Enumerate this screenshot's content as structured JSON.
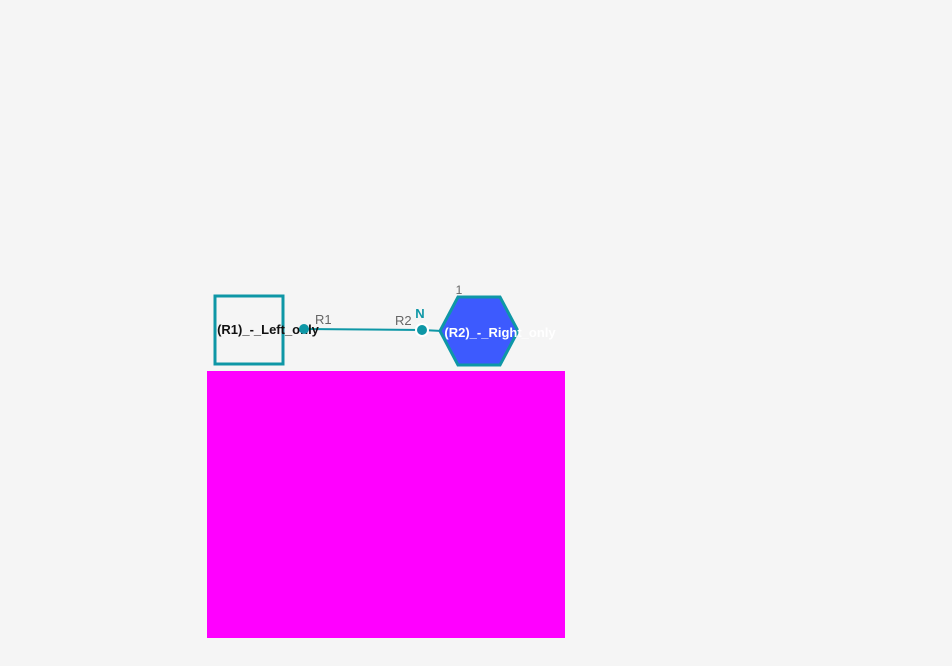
{
  "colors": {
    "background": "#f5f5f5",
    "edge": "#0e97a6",
    "left_node_fill": "#f5f5f5",
    "right_node_fill": "#3d5afe",
    "overlay": "#ff00ff",
    "port_label": "#666666"
  },
  "nodes": {
    "left": {
      "label": "(R1)_-_Left_only",
      "shape": "rectangle",
      "port_label": "R1"
    },
    "right": {
      "label": "(R2)_-_Right_only",
      "shape": "hexagon",
      "port_label": "R2",
      "port_marker": "N",
      "index_label": "1"
    }
  }
}
